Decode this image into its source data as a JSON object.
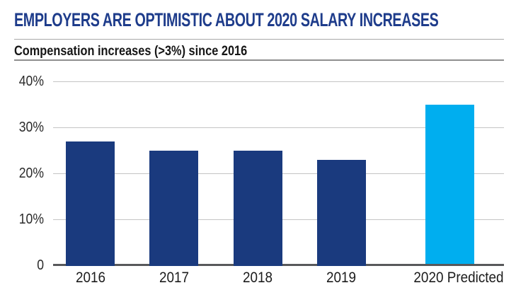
{
  "header": {
    "title": "EMPLOYERS ARE OPTIMISTIC ABOUT 2020 SALARY INCREASES",
    "subtitle": "Compensation increases (>3%) since 2016"
  },
  "colors": {
    "title_navy": "#1e3c8b",
    "bar_navy": "#1a3a7e",
    "bar_highlight_cyan": "#00aeef",
    "gridline_gray": "#c4c4c4",
    "axis_gray": "#58595b"
  },
  "chart_data": {
    "type": "bar",
    "title": "EMPLOYERS ARE OPTIMISTIC ABOUT 2020 SALARY INCREASES",
    "subtitle": "Compensation increases (>3%) since 2016",
    "categories": [
      "2016",
      "2017",
      "2018",
      "2019",
      "2020 Predicted"
    ],
    "values": [
      27,
      25,
      25,
      23,
      35
    ],
    "unit": "%",
    "xlabel": "",
    "ylabel": "",
    "ylim": [
      0,
      40
    ],
    "grid": "horizontal",
    "legend": "none",
    "yticks": [
      {
        "label": "40%",
        "value": 40
      },
      {
        "label": "30%",
        "value": 30
      },
      {
        "label": "20%",
        "value": 20
      },
      {
        "label": "10%",
        "value": 10
      },
      {
        "label": "0",
        "value": 0
      }
    ],
    "bar_colors": [
      "#1a3a7e",
      "#1a3a7e",
      "#1a3a7e",
      "#1a3a7e",
      "#00aeef"
    ],
    "highlight_category": "2020 Predicted"
  }
}
